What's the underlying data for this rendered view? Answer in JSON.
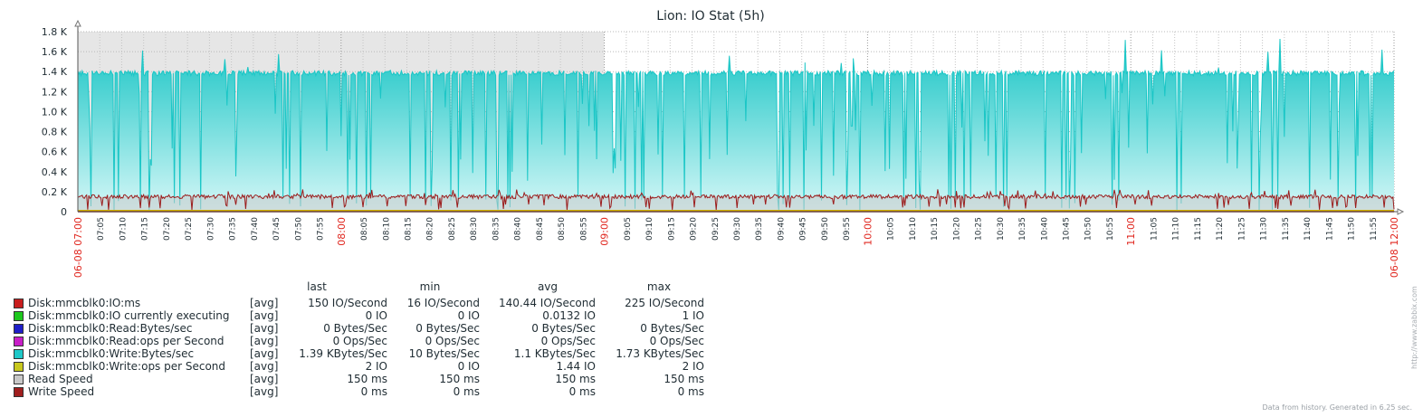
{
  "chart_data": {
    "type": "area",
    "title": "Lion: IO Stat (5h)",
    "y_ticks": [
      "0",
      "0.2 K",
      "0.4 K",
      "0.6 K",
      "0.8 K",
      "1.0 K",
      "1.2 K",
      "1.4 K",
      "1.6 K",
      "1.8 K"
    ],
    "ylim": [
      0,
      1800
    ],
    "x_range_minutes": [
      0,
      300
    ],
    "x_start_label": "06-08 07:00",
    "x_end_label": "06-08 12:00",
    "x_tick_labels": [
      "07:05",
      "07:10",
      "07:15",
      "07:20",
      "07:25",
      "07:30",
      "07:35",
      "07:40",
      "07:45",
      "07:50",
      "07:55",
      "08:00",
      "08:05",
      "08:10",
      "08:15",
      "08:20",
      "08:25",
      "08:30",
      "08:35",
      "08:40",
      "08:45",
      "08:50",
      "08:55",
      "09:00",
      "09:05",
      "09:10",
      "09:15",
      "09:20",
      "09:25",
      "09:30",
      "09:35",
      "09:40",
      "09:45",
      "09:50",
      "09:55",
      "10:00",
      "10:05",
      "10:10",
      "10:15",
      "10:20",
      "10:25",
      "10:30",
      "10:35",
      "10:40",
      "10:45",
      "10:50",
      "10:55",
      "11:00",
      "11:05",
      "11:10",
      "11:15",
      "11:20",
      "11:25",
      "11:30",
      "11:35",
      "11:40",
      "11:45",
      "11:50",
      "11:55"
    ],
    "highlight_hours": [
      "08:00",
      "09:00",
      "10:00",
      "11:00"
    ],
    "shaded_range": [
      "07:00",
      "09:00"
    ],
    "grid": true,
    "series": [
      {
        "name": "Disk:mmcblk0:Write:Bytes/sec",
        "color": "#1ac6c6",
        "baseline": 1390,
        "max": 1730,
        "dip_min": 10
      },
      {
        "name": "Disk:mmcblk0:IO:ms",
        "color": "#9b1c1c",
        "baseline": 150,
        "max": 225,
        "min": 16
      },
      {
        "name": "Read Speed",
        "color": "#c8c8c8",
        "value": 150
      },
      {
        "name": "Write Speed",
        "color": "#8b1a1a",
        "value": 0
      }
    ]
  },
  "legend": {
    "headers": {
      "last": "last",
      "min": "min",
      "avg": "avg",
      "max": "max"
    },
    "rows": [
      {
        "color": "#c81e1e",
        "name": "Disk:mmcblk0:IO:ms",
        "fn": "[avg]",
        "last": "150 IO/Second",
        "min": "16 IO/Second",
        "avg": "140.44 IO/Second",
        "max": "225 IO/Second"
      },
      {
        "color": "#1ec81e",
        "name": "Disk:mmcblk0:IO currently executing",
        "fn": "[avg]",
        "last": "0 IO",
        "min": "0 IO",
        "avg": "0.0132 IO",
        "max": "1 IO"
      },
      {
        "color": "#1e1ec8",
        "name": "Disk:mmcblk0:Read:Bytes/sec",
        "fn": "[avg]",
        "last": "0 Bytes/Sec",
        "min": "0 Bytes/Sec",
        "avg": "0 Bytes/Sec",
        "max": "0 Bytes/Sec"
      },
      {
        "color": "#c81ec8",
        "name": "Disk:mmcblk0:Read:ops per Second",
        "fn": "[avg]",
        "last": "0 Ops/Sec",
        "min": "0 Ops/Sec",
        "avg": "0 Ops/Sec",
        "max": "0 Ops/Sec"
      },
      {
        "color": "#1ec8c8",
        "name": "Disk:mmcblk0:Write:Bytes/sec",
        "fn": "[avg]",
        "last": "1.39 KBytes/Sec",
        "min": "10 Bytes/Sec",
        "avg": "1.1 KBytes/Sec",
        "max": "1.73 KBytes/Sec"
      },
      {
        "color": "#c8c81e",
        "name": "Disk:mmcblk0:Write:ops per Second",
        "fn": "[avg]",
        "last": "2 IO",
        "min": "0 IO",
        "avg": "1.44 IO",
        "max": "2 IO"
      },
      {
        "color": "#c8c8c8",
        "name": "Read Speed",
        "fn": "[avg]",
        "last": "150 ms",
        "min": "150 ms",
        "avg": "150 ms",
        "max": "150 ms"
      },
      {
        "color": "#a01e1e",
        "name": "Write Speed",
        "fn": "[avg]",
        "last": "0 ms",
        "min": "0 ms",
        "avg": "0 ms",
        "max": "0 ms"
      }
    ]
  },
  "footer": "Data from history. Generated in 6.25 sec.",
  "side_url": "http://www.zabbix.com"
}
